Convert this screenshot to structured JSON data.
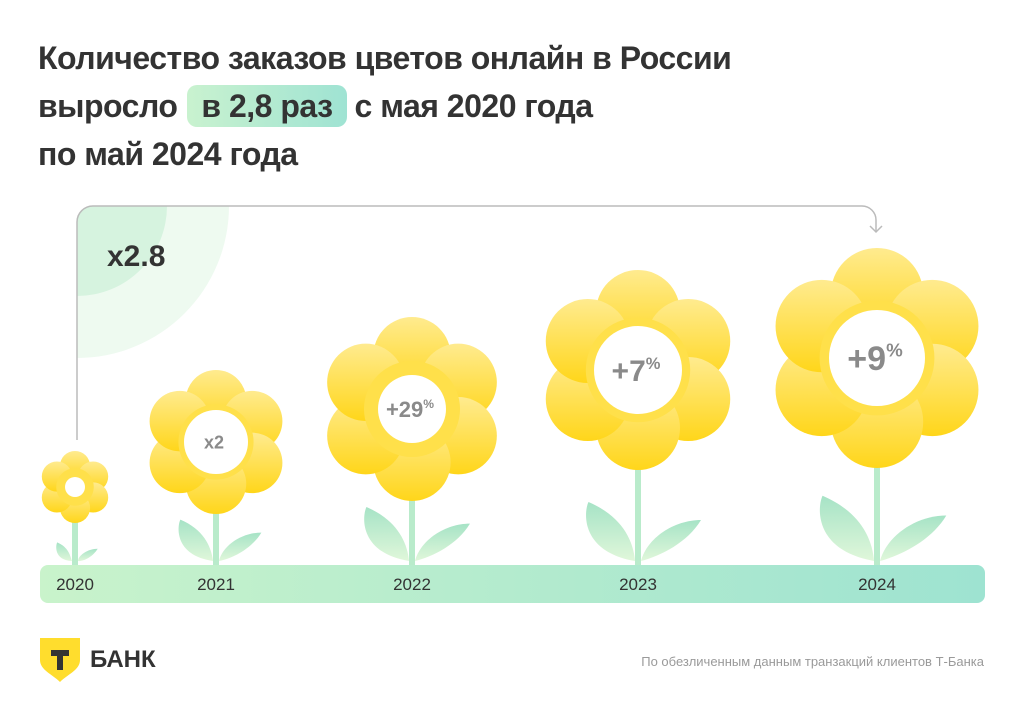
{
  "title": {
    "line1": "Количество заказов цветов онлайн в России",
    "pre": "выросло",
    "highlight": "в 2,8 раз",
    "post": "с мая 2020 года",
    "line3": "по май 2024 года"
  },
  "total_label": "x2.8",
  "footer": {
    "brand": "БАНК",
    "logo_letter": "Т",
    "note": "По обезличенным данным транзакций клиентов Т-Банка"
  },
  "colors": {
    "petal_light": "#FFEB8F",
    "petal_dark": "#FFD61A",
    "ground_start": "#C9F3CB",
    "ground_end": "#9EE3D1",
    "stem": "#B9EBCB",
    "text": "#333333"
  },
  "chart_data": {
    "type": "pictogram",
    "title": "Количество заказов цветов онлайн в России",
    "categories": [
      "2020",
      "2021",
      "2022",
      "2023",
      "2024"
    ],
    "labels": [
      "",
      "x2",
      "+29",
      "+7",
      "+9"
    ],
    "label_suffix": [
      "",
      "",
      "%",
      "%",
      "%"
    ],
    "total_growth": "x2.8"
  }
}
